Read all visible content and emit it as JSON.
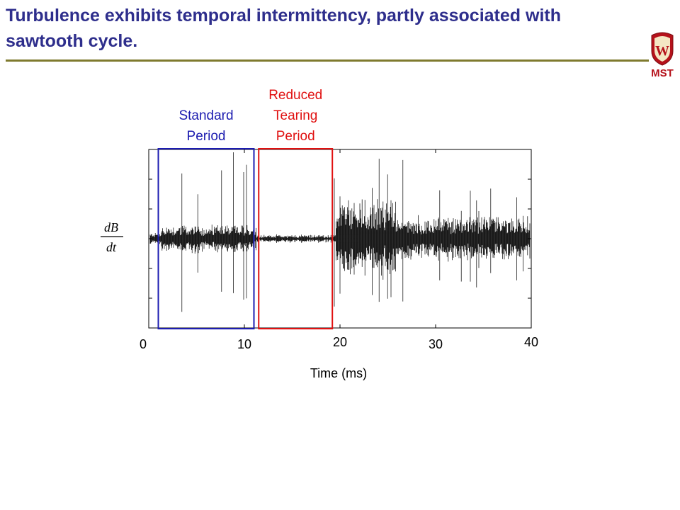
{
  "slide": {
    "title": "Turbulence exhibits temporal intermittency, partly associated with sawtooth cycle.",
    "logo_text": "MST",
    "logo_letter": "W",
    "colors": {
      "title": "#2e2e8c",
      "rule": "#7f7a2e",
      "logo": "#b5121b",
      "standard": "#1c1cb0",
      "reduced": "#e01010",
      "trace": "#000000"
    }
  },
  "chart_data": {
    "type": "line",
    "xlabel": "Time (ms)",
    "ylabel_num": "dB",
    "ylabel_den": "dt",
    "xlim": [
      0,
      40
    ],
    "xticks": [
      "0",
      "10",
      "20",
      "30",
      "40"
    ],
    "grid": false,
    "regions": [
      {
        "label_lines": [
          "Standard",
          "Period"
        ],
        "x_start": 1,
        "x_end": 11,
        "color": "#1c1cb0"
      },
      {
        "label_lines": [
          "Reduced",
          "Tearing",
          "Period"
        ],
        "x_start": 11.5,
        "x_end": 19.2,
        "color": "#e01010"
      }
    ]
  }
}
